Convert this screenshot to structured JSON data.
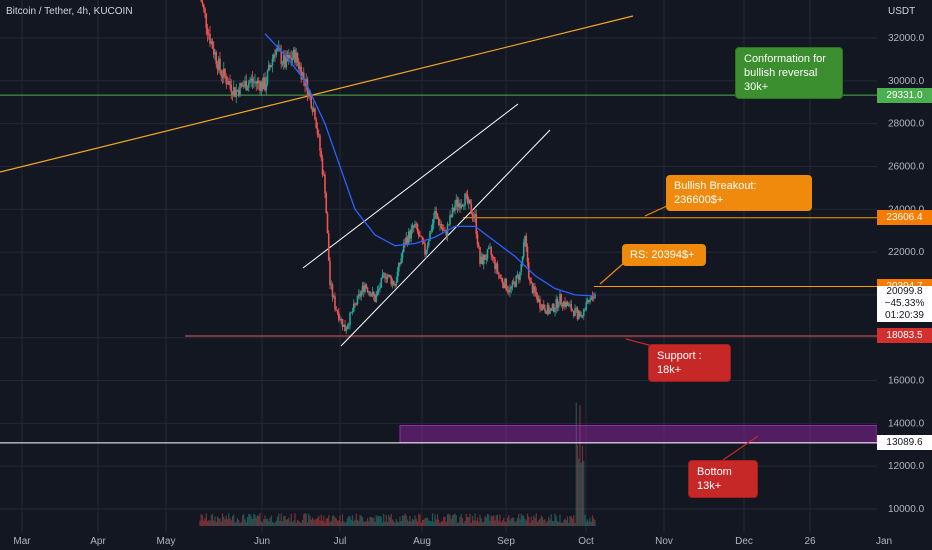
{
  "header": {
    "symbol": "Bitcoin / Tether, 4h, KUCOIN",
    "currency": "USDT"
  },
  "colors": {
    "background": "#131722",
    "grid": "#242836",
    "ma_line": "#2962ff",
    "candle_up": "#26a69a",
    "candle_down": "#ef5350",
    "trend_orange": "#f5a623",
    "channel": "#ffffff",
    "green_line": "#4caf50",
    "orange_line": "#ff9800",
    "red_line": "#ef5350",
    "white_line": "#ffffff",
    "zone_fill": "#9c27b0"
  },
  "chart_data": {
    "type": "candlestick",
    "timeframe": "4h",
    "ylim": [
      9000,
      34500
    ],
    "y_ticks": [
      10000,
      12000,
      14000,
      16000,
      18000,
      20000,
      22000,
      24000,
      26000,
      28000,
      30000,
      32000
    ],
    "y_tick_labels": [
      "10000.0",
      "12000.0",
      "14000.0",
      "16000.0",
      "18000.0",
      "20000.0",
      "22000.0",
      "24000.0",
      "26000.0",
      "28000.0",
      "30000.0",
      "32000.0"
    ],
    "x_labels": [
      "Mar",
      "Apr",
      "May",
      "Jun",
      "Jul",
      "Aug",
      "Sep",
      "Oct",
      "Nov",
      "Dec",
      "26",
      "Jan"
    ],
    "price_path": [
      [
        0,
        34000
      ],
      [
        4,
        32000
      ],
      [
        8,
        30500
      ],
      [
        14,
        29500
      ],
      [
        20,
        30000
      ],
      [
        26,
        29800
      ],
      [
        30,
        31500
      ],
      [
        34,
        30800
      ],
      [
        38,
        31200
      ],
      [
        42,
        30000
      ],
      [
        46,
        28500
      ],
      [
        50,
        25000
      ],
      [
        52,
        20500
      ],
      [
        54,
        19500
      ],
      [
        58,
        18400
      ],
      [
        62,
        19500
      ],
      [
        66,
        20500
      ],
      [
        70,
        19800
      ],
      [
        74,
        21000
      ],
      [
        78,
        20500
      ],
      [
        82,
        22500
      ],
      [
        86,
        23200
      ],
      [
        90,
        22000
      ],
      [
        94,
        23800
      ],
      [
        98,
        22800
      ],
      [
        102,
        24200
      ],
      [
        106,
        24500
      ],
      [
        110,
        23600
      ],
      [
        112,
        21500
      ],
      [
        116,
        22000
      ],
      [
        120,
        20800
      ],
      [
        124,
        20200
      ],
      [
        128,
        21000
      ],
      [
        130,
        22600
      ],
      [
        132,
        20500
      ],
      [
        136,
        19600
      ],
      [
        140,
        19200
      ],
      [
        144,
        19800
      ],
      [
        148,
        19400
      ],
      [
        152,
        19000
      ],
      [
        156,
        19700
      ],
      [
        158,
        20100
      ]
    ],
    "ma_path": [
      [
        26,
        32200
      ],
      [
        34,
        31200
      ],
      [
        42,
        30000
      ],
      [
        50,
        28000
      ],
      [
        56,
        26000
      ],
      [
        62,
        24000
      ],
      [
        70,
        22800
      ],
      [
        78,
        22300
      ],
      [
        86,
        22400
      ],
      [
        94,
        22700
      ],
      [
        102,
        23200
      ],
      [
        110,
        23200
      ],
      [
        118,
        22500
      ],
      [
        126,
        21800
      ],
      [
        134,
        20900
      ],
      [
        142,
        20300
      ],
      [
        150,
        20000
      ],
      [
        158,
        19950
      ]
    ],
    "horizontal_levels": [
      {
        "price": 29331.0,
        "label": "29331.0",
        "color": "#4caf50",
        "tag_bg": "#4caf50"
      },
      {
        "price": 23606.4,
        "label": "23606.4",
        "color": "#ff9800",
        "tag_bg": "#f57c00"
      },
      {
        "price": 20394.7,
        "label": "20394.7",
        "color": "#ff9800",
        "tag_bg": "#f57c00"
      },
      {
        "price": 18083.5,
        "label": "18083.5",
        "color": "#ef5350",
        "tag_bg": "#d32f2f"
      },
      {
        "price": 13089.6,
        "label": "13089.6",
        "color": "#ffffff",
        "tag_bg": "#ffffff"
      }
    ],
    "live_price": {
      "price": "20099.8",
      "change": "−45.33%",
      "countdown": "01:20:39"
    },
    "zone": {
      "from": 13100,
      "to": 13900,
      "color": "#9c27b0"
    }
  },
  "annotations": {
    "conformation": "Conformation for\nbullish reversal 30k+",
    "bullish_breakout": "Bullish Breakout: 236600$+",
    "rs": "RS: 20394$+",
    "support": "Support : 18k+",
    "bottom": "Bottom 13k+"
  }
}
